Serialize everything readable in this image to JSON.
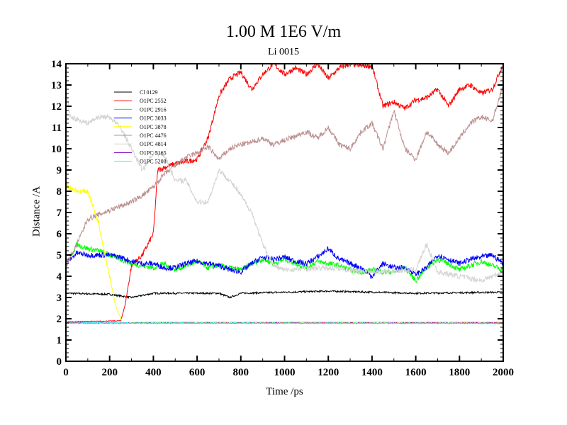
{
  "chart_data": {
    "type": "line",
    "title": "1.00 M 1E6 V/m",
    "subtitle": "Li 0015",
    "xlabel": "Time /ps",
    "ylabel": "Distance /A",
    "xlim": [
      0,
      2000
    ],
    "ylim": [
      0,
      14
    ],
    "xticks": [
      0,
      200,
      400,
      600,
      800,
      1000,
      1200,
      1400,
      1600,
      1800,
      2000
    ],
    "yticks": [
      0,
      1,
      2,
      3,
      4,
      5,
      6,
      7,
      8,
      9,
      10,
      11,
      12,
      13,
      14
    ],
    "legend_position": "top-left",
    "series": [
      {
        "name": "Cl 0129",
        "color": "#000000",
        "points": [
          [
            0,
            3.2
          ],
          [
            200,
            3.15
          ],
          [
            300,
            3.0
          ],
          [
            400,
            3.2
          ],
          [
            700,
            3.2
          ],
          [
            750,
            3.0
          ],
          [
            800,
            3.2
          ],
          [
            1200,
            3.3
          ],
          [
            1600,
            3.2
          ],
          [
            2000,
            3.25
          ]
        ]
      },
      {
        "name": "O1PC 2552",
        "color": "#ff0000",
        "points": [
          [
            0,
            1.85
          ],
          [
            250,
            1.9
          ],
          [
            270,
            2.6
          ],
          [
            300,
            4.5
          ],
          [
            350,
            5.0
          ],
          [
            400,
            6.0
          ],
          [
            420,
            9.0
          ],
          [
            500,
            9.3
          ],
          [
            600,
            9.5
          ],
          [
            650,
            10.5
          ],
          [
            700,
            12.5
          ],
          [
            750,
            13.3
          ],
          [
            800,
            13.6
          ],
          [
            850,
            12.8
          ],
          [
            900,
            13.5
          ],
          [
            950,
            14
          ],
          [
            1000,
            13.5
          ],
          [
            1050,
            13.8
          ],
          [
            1100,
            13.5
          ],
          [
            1150,
            14
          ],
          [
            1200,
            13.3
          ],
          [
            1250,
            13.8
          ],
          [
            1300,
            14
          ],
          [
            1350,
            13.9
          ],
          [
            1400,
            13.9
          ],
          [
            1450,
            12.0
          ],
          [
            1500,
            12.2
          ],
          [
            1550,
            11.9
          ],
          [
            1600,
            12.3
          ],
          [
            1650,
            12.4
          ],
          [
            1700,
            12.8
          ],
          [
            1750,
            12.0
          ],
          [
            1800,
            12.8
          ],
          [
            1850,
            13.0
          ],
          [
            1900,
            12.6
          ],
          [
            1950,
            12.8
          ],
          [
            2000,
            14
          ]
        ]
      },
      {
        "name": "O1PC 2916",
        "color": "#00ff00",
        "points": [
          [
            0,
            4.5
          ],
          [
            50,
            5.5
          ],
          [
            100,
            5.3
          ],
          [
            150,
            5.2
          ],
          [
            200,
            5.0
          ],
          [
            250,
            4.8
          ],
          [
            300,
            4.6
          ],
          [
            350,
            4.5
          ],
          [
            400,
            4.4
          ],
          [
            450,
            4.6
          ],
          [
            500,
            4.3
          ],
          [
            550,
            4.5
          ],
          [
            600,
            4.7
          ],
          [
            650,
            4.4
          ],
          [
            700,
            4.5
          ],
          [
            750,
            4.4
          ],
          [
            800,
            4.3
          ],
          [
            850,
            4.6
          ],
          [
            900,
            4.8
          ],
          [
            950,
            4.6
          ],
          [
            1000,
            4.8
          ],
          [
            1050,
            4.6
          ],
          [
            1100,
            4.4
          ],
          [
            1150,
            4.7
          ],
          [
            1200,
            4.6
          ],
          [
            1250,
            4.5
          ],
          [
            1300,
            4.3
          ],
          [
            1350,
            4.2
          ],
          [
            1400,
            4.3
          ],
          [
            1450,
            4.2
          ],
          [
            1500,
            4.2
          ],
          [
            1550,
            4.4
          ],
          [
            1600,
            3.8
          ],
          [
            1650,
            4.4
          ],
          [
            1700,
            4.8
          ],
          [
            1750,
            4.6
          ],
          [
            1800,
            4.3
          ],
          [
            1850,
            4.5
          ],
          [
            1900,
            4.7
          ],
          [
            1950,
            4.5
          ],
          [
            2000,
            4.3
          ]
        ]
      },
      {
        "name": "O1PC 3033",
        "color": "#0000ff",
        "points": [
          [
            0,
            4.6
          ],
          [
            50,
            5.1
          ],
          [
            100,
            5.0
          ],
          [
            150,
            5.0
          ],
          [
            200,
            5.0
          ],
          [
            250,
            4.9
          ],
          [
            300,
            4.7
          ],
          [
            350,
            4.6
          ],
          [
            400,
            4.6
          ],
          [
            450,
            4.4
          ],
          [
            500,
            4.4
          ],
          [
            550,
            4.6
          ],
          [
            600,
            4.7
          ],
          [
            650,
            4.6
          ],
          [
            700,
            4.5
          ],
          [
            750,
            4.3
          ],
          [
            800,
            4.2
          ],
          [
            850,
            4.6
          ],
          [
            900,
            4.9
          ],
          [
            950,
            4.8
          ],
          [
            1000,
            4.9
          ],
          [
            1050,
            4.7
          ],
          [
            1100,
            4.6
          ],
          [
            1150,
            4.9
          ],
          [
            1200,
            5.3
          ],
          [
            1250,
            4.8
          ],
          [
            1300,
            4.6
          ],
          [
            1350,
            4.4
          ],
          [
            1400,
            4.0
          ],
          [
            1450,
            4.6
          ],
          [
            1500,
            4.4
          ],
          [
            1550,
            4.4
          ],
          [
            1600,
            4.1
          ],
          [
            1650,
            4.4
          ],
          [
            1700,
            5.0
          ],
          [
            1750,
            4.8
          ],
          [
            1800,
            4.6
          ],
          [
            1850,
            4.8
          ],
          [
            1900,
            4.9
          ],
          [
            1950,
            5.0
          ],
          [
            2000,
            4.6
          ]
        ]
      },
      {
        "name": "O1PC 3878",
        "color": "#ffff00",
        "points": [
          [
            0,
            8.3
          ],
          [
            50,
            8.0
          ],
          [
            100,
            8.0
          ],
          [
            150,
            6.5
          ],
          [
            200,
            4.0
          ],
          [
            230,
            2.5
          ],
          [
            260,
            1.8
          ],
          [
            400,
            1.85
          ],
          [
            2000,
            1.85
          ]
        ]
      },
      {
        "name": "O1PC 4476",
        "color": "#bc8f8f",
        "points": [
          [
            0,
            4.5
          ],
          [
            50,
            5.5
          ],
          [
            100,
            6.7
          ],
          [
            150,
            6.9
          ],
          [
            200,
            7.1
          ],
          [
            250,
            7.3
          ],
          [
            300,
            7.5
          ],
          [
            350,
            7.8
          ],
          [
            400,
            8.2
          ],
          [
            450,
            8.8
          ],
          [
            500,
            9.2
          ],
          [
            550,
            9.6
          ],
          [
            600,
            9.8
          ],
          [
            650,
            10.1
          ],
          [
            700,
            9.5
          ],
          [
            750,
            10.0
          ],
          [
            800,
            10.2
          ],
          [
            850,
            10.3
          ],
          [
            900,
            10.5
          ],
          [
            950,
            10.2
          ],
          [
            1000,
            10.4
          ],
          [
            1050,
            10.6
          ],
          [
            1100,
            10.8
          ],
          [
            1150,
            10.5
          ],
          [
            1200,
            11.0
          ],
          [
            1250,
            10.2
          ],
          [
            1300,
            10.0
          ],
          [
            1350,
            10.8
          ],
          [
            1400,
            11.2
          ],
          [
            1450,
            10.0
          ],
          [
            1500,
            11.8
          ],
          [
            1550,
            10.0
          ],
          [
            1600,
            9.5
          ],
          [
            1650,
            10.8
          ],
          [
            1700,
            10.2
          ],
          [
            1750,
            9.8
          ],
          [
            1800,
            10.5
          ],
          [
            1850,
            11.2
          ],
          [
            1900,
            11.5
          ],
          [
            1950,
            11.3
          ],
          [
            2000,
            13
          ]
        ]
      },
      {
        "name": "O1PC 4814",
        "color": "#d3d3d3",
        "points": [
          [
            0,
            12.8
          ],
          [
            20,
            11.5
          ],
          [
            100,
            11.2
          ],
          [
            150,
            11.5
          ],
          [
            200,
            11.5
          ],
          [
            250,
            11.0
          ],
          [
            300,
            10.0
          ],
          [
            350,
            9.0
          ],
          [
            400,
            9.8
          ],
          [
            450,
            9.7
          ],
          [
            500,
            8.5
          ],
          [
            550,
            8.5
          ],
          [
            600,
            7.5
          ],
          [
            650,
            7.5
          ],
          [
            700,
            9.0
          ],
          [
            750,
            8.5
          ],
          [
            800,
            7.8
          ],
          [
            850,
            7.0
          ],
          [
            900,
            5.5
          ],
          [
            950,
            4.5
          ],
          [
            1000,
            4.3
          ],
          [
            1200,
            4.4
          ],
          [
            1400,
            4.2
          ],
          [
            1600,
            4.3
          ],
          [
            1650,
            5.5
          ],
          [
            1700,
            4.2
          ],
          [
            1800,
            4.0
          ],
          [
            1900,
            3.8
          ],
          [
            2000,
            4.2
          ]
        ]
      },
      {
        "name": "O1PC 5165",
        "color": "#8000c0",
        "points": [
          [
            0,
            1.8
          ],
          [
            2000,
            1.8
          ]
        ]
      },
      {
        "name": "O1PC 5208",
        "color": "#00ffff",
        "points": [
          [
            0,
            1.8
          ],
          [
            2000,
            1.78
          ]
        ]
      }
    ]
  }
}
